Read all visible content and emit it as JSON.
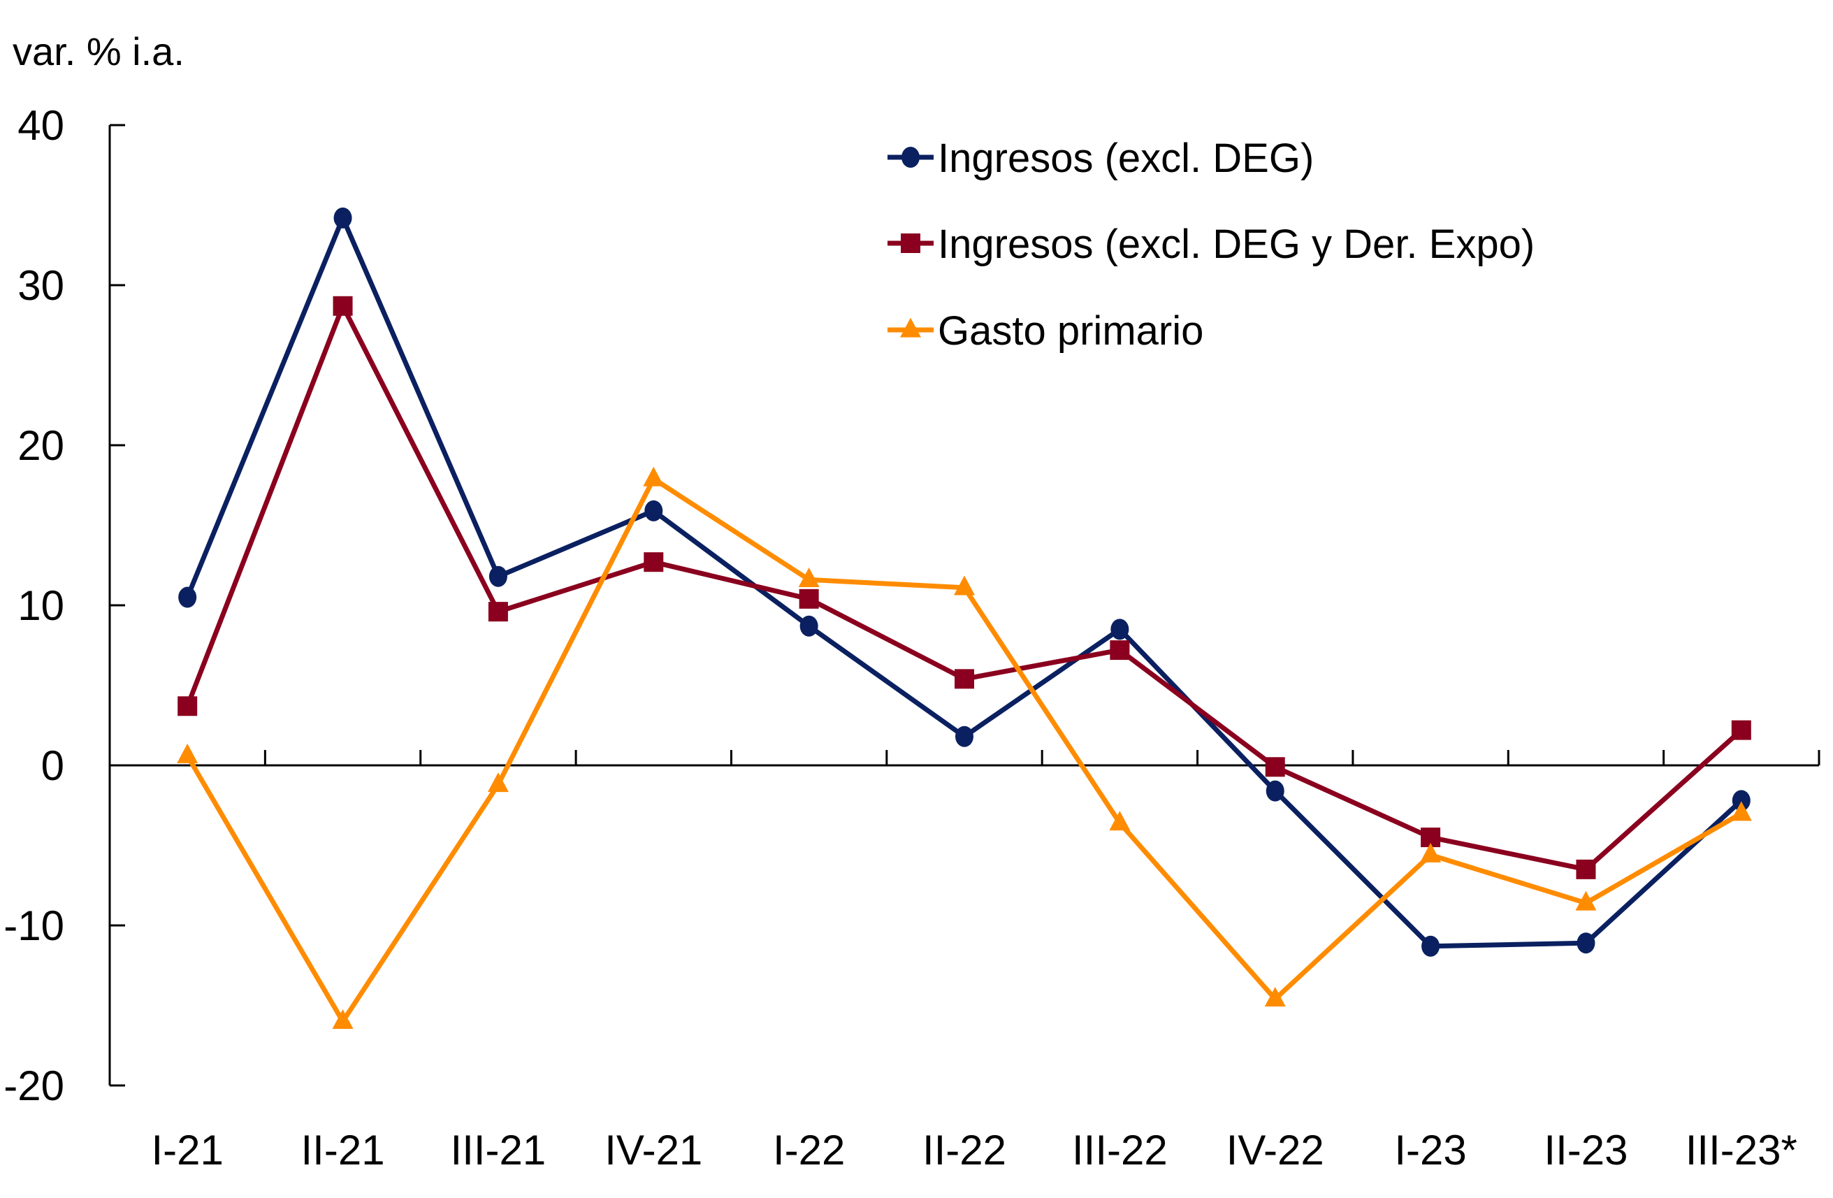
{
  "chart_data": {
    "type": "line",
    "title": "",
    "ylabel": "var. % i.a.",
    "xlabel": "",
    "categories": [
      "I-21",
      "II-21",
      "III-21",
      "IV-21",
      "I-22",
      "II-22",
      "III-22",
      "IV-22",
      "I-23",
      "II-23",
      "III-23*"
    ],
    "ylim": [
      -20,
      40
    ],
    "yticks": [
      40,
      30,
      20,
      10,
      0,
      -10,
      -20
    ],
    "grid": false,
    "legend_position": "top-right",
    "series": [
      {
        "name": "Ingresos (excl. DEG)",
        "color": "#0a2060",
        "marker": "circle",
        "values": [
          10.5,
          34.2,
          11.8,
          15.9,
          8.7,
          1.8,
          8.5,
          -1.6,
          -11.3,
          -11.1,
          -2.2
        ]
      },
      {
        "name": "Ingresos (excl. DEG y Der. Expo)",
        "color": "#8a001e",
        "marker": "square",
        "values": [
          3.7,
          28.7,
          9.6,
          12.7,
          10.4,
          5.4,
          7.2,
          -0.1,
          -4.5,
          -6.5,
          2.2
        ]
      },
      {
        "name": "Gasto primario",
        "color": "#ff8c00",
        "marker": "triangle",
        "values": [
          0.6,
          -16.0,
          -1.2,
          17.9,
          11.6,
          11.1,
          -3.6,
          -14.6,
          -5.6,
          -8.6,
          -3.0
        ]
      }
    ]
  }
}
